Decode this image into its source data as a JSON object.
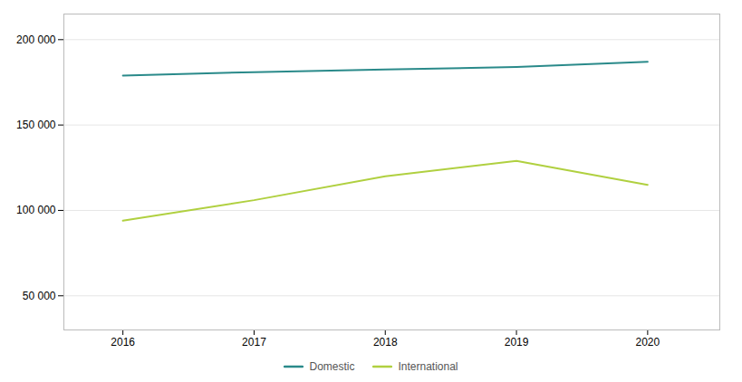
{
  "chart_data": {
    "type": "line",
    "x": [
      2016,
      2017,
      2018,
      2019,
      2020
    ],
    "series": [
      {
        "name": "Domestic",
        "color": "#2a8a8a",
        "values": [
          179000,
          181000,
          182500,
          184000,
          187000
        ]
      },
      {
        "name": "International",
        "color": "#b0d040",
        "values": [
          94000,
          106000,
          120000,
          129000,
          115000
        ]
      }
    ],
    "xlim": [
      2015.55,
      2020.55
    ],
    "xticks": [
      2016,
      2017,
      2018,
      2019,
      2020
    ],
    "ylim": [
      30000,
      215000
    ],
    "yticks": [
      {
        "value": 50000,
        "label": "50 000"
      },
      {
        "value": 100000,
        "label": "100 000"
      },
      {
        "value": 150000,
        "label": "150 000"
      },
      {
        "value": 200000,
        "label": "200 000"
      }
    ],
    "grid": true,
    "legend": "bottom"
  }
}
